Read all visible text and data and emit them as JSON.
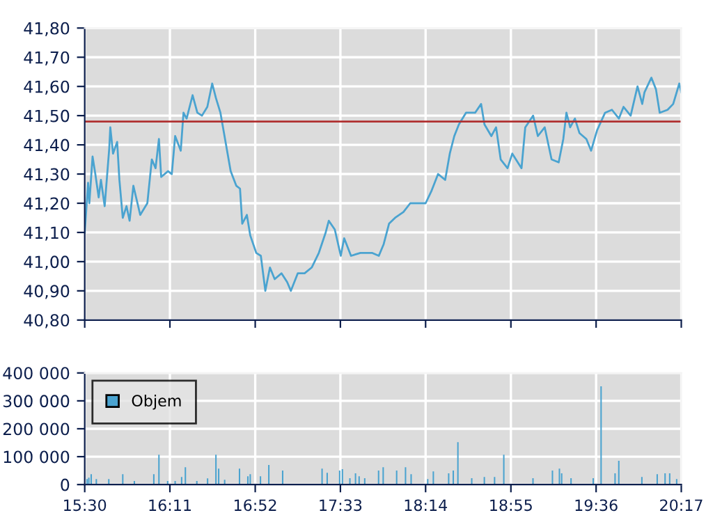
{
  "chart_data": [
    {
      "type": "line",
      "grid": true,
      "tick_labels": "y",
      "marker": "none",
      "line_style": "solid",
      "xlim": [
        15.5,
        20.283
      ],
      "ylim": [
        40.8,
        41.8
      ],
      "xticks": [
        {
          "value": 15.5,
          "label": null
        },
        {
          "value": 16.183,
          "label": null
        },
        {
          "value": 16.867,
          "label": null
        },
        {
          "value": 17.55,
          "label": null
        },
        {
          "value": 18.233,
          "label": null
        },
        {
          "value": 18.917,
          "label": null
        },
        {
          "value": 19.6,
          "label": null
        },
        {
          "value": 20.283,
          "label": null
        }
      ],
      "yticks": [
        {
          "value": 40.8,
          "label": "40,80"
        },
        {
          "value": 40.9,
          "label": "40,90"
        },
        {
          "value": 41.0,
          "label": "41,00"
        },
        {
          "value": 41.1,
          "label": "41,10"
        },
        {
          "value": 41.2,
          "label": "41,20"
        },
        {
          "value": 41.3,
          "label": "41,30"
        },
        {
          "value": 41.4,
          "label": "41,40"
        },
        {
          "value": 41.5,
          "label": "41,50"
        },
        {
          "value": 41.6,
          "label": "41,60"
        },
        {
          "value": 41.7,
          "label": "41,70"
        },
        {
          "value": 41.8,
          "label": "41,80"
        }
      ],
      "ref_lines": [
        {
          "axis": "y",
          "value": 41.48,
          "color": "#b03030"
        }
      ],
      "series": [
        {
          "color": "#4aa3d0",
          "x": [
            15.5,
            15.527,
            15.537,
            15.563,
            15.585,
            15.612,
            15.63,
            15.66,
            15.697,
            15.705,
            15.727,
            15.76,
            15.778,
            15.805,
            15.835,
            15.86,
            15.89,
            15.945,
            16.002,
            16.038,
            16.068,
            16.095,
            16.113,
            16.168,
            16.198,
            16.225,
            16.27,
            16.292,
            16.317,
            16.365,
            16.403,
            16.44,
            16.483,
            16.522,
            16.552,
            16.588,
            16.625,
            16.67,
            16.715,
            16.745,
            16.763,
            16.8,
            16.827,
            16.875,
            16.912,
            16.948,
            16.985,
            17.023,
            17.078,
            17.123,
            17.153,
            17.208,
            17.263,
            17.32,
            17.377,
            17.432,
            17.457,
            17.505,
            17.553,
            17.58,
            17.635,
            17.71,
            17.803,
            17.858,
            17.897,
            17.94,
            17.988,
            18.055,
            18.11,
            18.185,
            18.233,
            18.278,
            18.333,
            18.39,
            18.427,
            18.463,
            18.5,
            18.557,
            18.63,
            18.678,
            18.705,
            18.76,
            18.798,
            18.835,
            18.89,
            18.928,
            19.002,
            19.032,
            19.095,
            19.133,
            19.188,
            19.243,
            19.3,
            19.337,
            19.362,
            19.392,
            19.43,
            19.467,
            19.522,
            19.56,
            19.608,
            19.672,
            19.727,
            19.783,
            19.82,
            19.877,
            19.932,
            19.97,
            19.988,
            20.043,
            20.08,
            20.11,
            20.173,
            20.218,
            20.267,
            20.283
          ],
          "values": [
            41.1,
            41.27,
            41.2,
            41.36,
            41.3,
            41.22,
            41.28,
            41.19,
            41.39,
            41.46,
            41.37,
            41.41,
            41.28,
            41.15,
            41.19,
            41.14,
            41.26,
            41.16,
            41.2,
            41.35,
            41.32,
            41.42,
            41.29,
            41.31,
            41.3,
            41.43,
            41.38,
            41.51,
            41.49,
            41.57,
            41.51,
            41.5,
            41.53,
            41.61,
            41.56,
            41.51,
            41.42,
            41.31,
            41.26,
            41.25,
            41.13,
            41.16,
            41.09,
            41.03,
            41.02,
            40.9,
            40.98,
            40.94,
            40.96,
            40.93,
            40.9,
            40.96,
            40.96,
            40.98,
            41.03,
            41.1,
            41.14,
            41.11,
            41.02,
            41.08,
            41.02,
            41.03,
            41.03,
            41.02,
            41.06,
            41.13,
            41.15,
            41.17,
            41.2,
            41.2,
            41.2,
            41.24,
            41.3,
            41.28,
            41.37,
            41.43,
            41.47,
            41.51,
            41.51,
            41.54,
            41.47,
            41.43,
            41.46,
            41.35,
            41.32,
            41.37,
            41.32,
            41.46,
            41.5,
            41.43,
            41.46,
            41.35,
            41.34,
            41.42,
            41.51,
            41.46,
            41.49,
            41.44,
            41.42,
            41.38,
            41.45,
            41.51,
            41.52,
            41.49,
            41.53,
            41.5,
            41.6,
            41.54,
            41.58,
            41.63,
            41.59,
            41.51,
            41.52,
            41.54,
            41.61,
            41.58
          ]
        }
      ]
    },
    {
      "type": "bar",
      "grid": true,
      "legend": "top left",
      "xlim": [
        15.5,
        20.283
      ],
      "ylim": [
        0,
        400000
      ],
      "xticks": [
        {
          "value": 15.5,
          "label": "15:30"
        },
        {
          "value": 16.183,
          "label": "16:11"
        },
        {
          "value": 16.867,
          "label": "16:52"
        },
        {
          "value": 17.55,
          "label": "17:33"
        },
        {
          "value": 18.233,
          "label": "18:14"
        },
        {
          "value": 18.917,
          "label": "18:55"
        },
        {
          "value": 19.6,
          "label": "19:36"
        },
        {
          "value": 20.283,
          "label": "20:17"
        }
      ],
      "yticks": [
        {
          "value": 0,
          "label": "0"
        },
        {
          "value": 100000,
          "label": "100 000"
        },
        {
          "value": 200000,
          "label": "200 000"
        },
        {
          "value": 300000,
          "label": "300 000"
        },
        {
          "value": 400000,
          "label": "400 000"
        }
      ],
      "series": [
        {
          "name": "Objem",
          "color": "#4aa3d0",
          "x": [
            15.519,
            15.533,
            15.552,
            15.593,
            15.693,
            15.805,
            15.898,
            16.002,
            16.054,
            16.095,
            16.165,
            16.225,
            16.277,
            16.307,
            16.399,
            16.485,
            16.552,
            16.574,
            16.622,
            16.741,
            16.808,
            16.827,
            16.909,
            16.976,
            17.087,
            17.403,
            17.444,
            17.544,
            17.566,
            17.626,
            17.671,
            17.7,
            17.745,
            17.856,
            17.893,
            18.001,
            18.072,
            18.117,
            18.25,
            18.295,
            18.418,
            18.455,
            18.492,
            18.603,
            18.704,
            18.786,
            18.86,
            19.094,
            19.25,
            19.306,
            19.324,
            19.399,
            19.577,
            19.64,
            19.752,
            19.782,
            19.967,
            20.09,
            20.153,
            20.19,
            20.246
          ],
          "values": [
            20000,
            25000,
            37000,
            20000,
            20000,
            37000,
            13000,
            null,
            37000,
            107000,
            13000,
            13000,
            27000,
            62000,
            13000,
            22000,
            107000,
            57000,
            17000,
            57000,
            30000,
            37000,
            30000,
            70000,
            50000,
            57000,
            42000,
            50000,
            55000,
            23000,
            40000,
            30000,
            23000,
            50000,
            62000,
            50000,
            62000,
            37000,
            20000,
            47000,
            40000,
            50000,
            152000,
            23000,
            27000,
            27000,
            107000,
            23000,
            50000,
            57000,
            40000,
            23000,
            23000,
            352000,
            40000,
            85000,
            27000,
            37000,
            40000,
            40000,
            20000
          ]
        }
      ]
    }
  ]
}
